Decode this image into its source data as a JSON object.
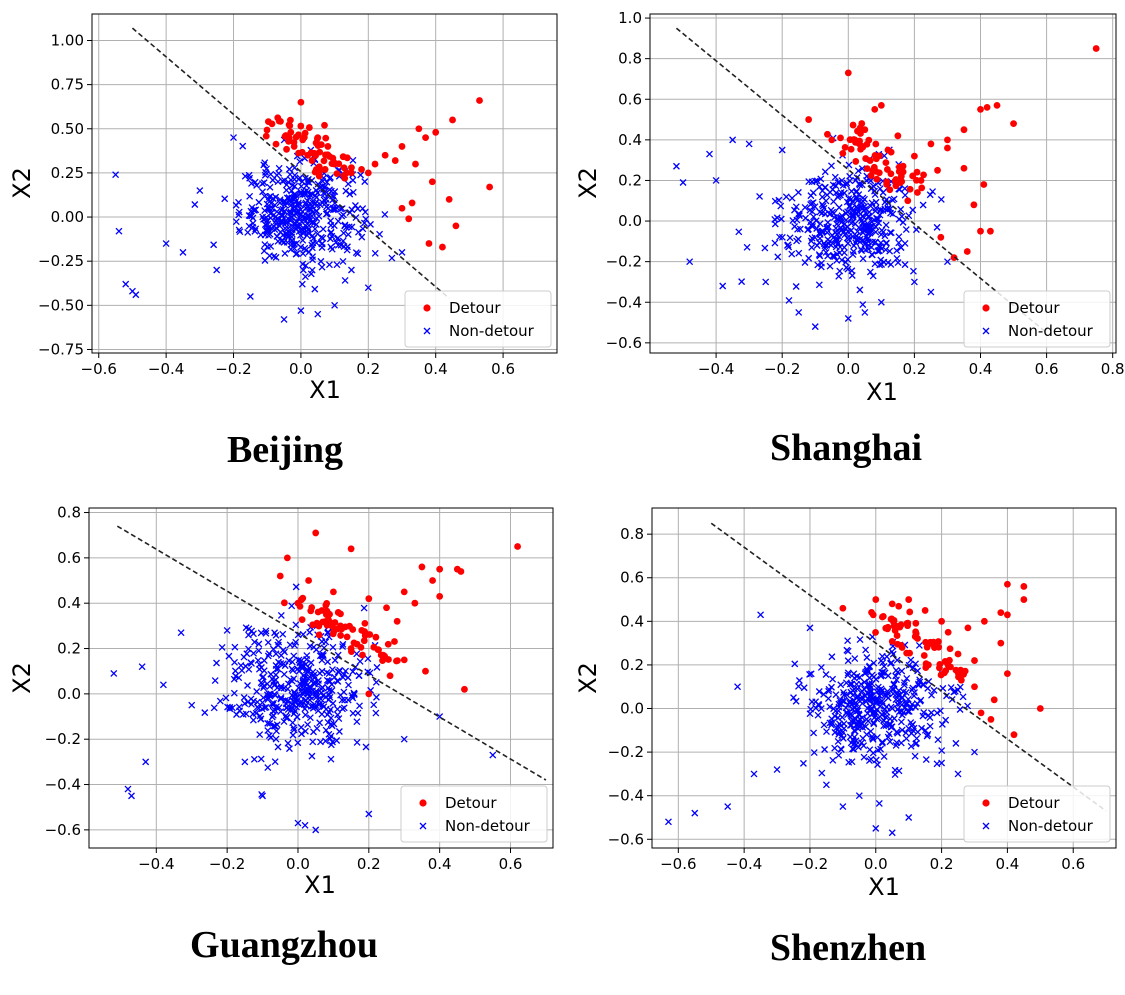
{
  "colors": {
    "detour": "#ff0000",
    "non_detour": "#0000ff",
    "boundary": "#222222",
    "grid": "#b0b0b0",
    "frame": "#000000"
  },
  "chart_data": [
    {
      "type": "scatter",
      "caption": "Beijing",
      "xlabel": "X1",
      "ylabel": "X2",
      "xlim": [
        -0.62,
        0.76
      ],
      "ylim": [
        -0.77,
        1.15
      ],
      "xticks": [
        -0.6,
        -0.4,
        -0.2,
        0.0,
        0.2,
        0.4,
        0.6
      ],
      "yticks": [
        -0.75,
        -0.5,
        -0.25,
        0.0,
        0.25,
        0.5,
        0.75,
        1.0
      ],
      "xtick_labels": [
        "−0.6",
        "−0.4",
        "−0.2",
        "0.0",
        "0.2",
        "0.4",
        "0.6"
      ],
      "ytick_labels": [
        "−0.75",
        "−0.50",
        "−0.25",
        "0.00",
        "0.25",
        "0.50",
        "0.75",
        "1.00"
      ],
      "grid": true,
      "legend_position": "lower-right",
      "series": [
        {
          "name": "Detour",
          "marker": "circle",
          "x": [
            0.0,
            0.05,
            0.1,
            0.15,
            0.2,
            0.25,
            0.3,
            0.35,
            0.4,
            0.45,
            0.53,
            0.56,
            0.02,
            0.08,
            0.13,
            0.22,
            0.28,
            0.33,
            0.38,
            0.42,
            0.46,
            0.3,
            0.34,
            0.37,
            0.39,
            0.44,
            0.32,
            0.18,
            0.07,
            -0.02
          ],
          "y": [
            0.65,
            0.45,
            0.3,
            0.28,
            0.25,
            0.35,
            0.4,
            0.5,
            0.48,
            0.55,
            0.66,
            0.17,
            0.35,
            0.4,
            0.22,
            0.3,
            0.32,
            0.08,
            -0.15,
            -0.17,
            -0.05,
            0.05,
            0.3,
            0.45,
            0.2,
            0.1,
            -0.01,
            0.27,
            0.52,
            0.4
          ]
        },
        {
          "name": "Non-detour",
          "marker": "x",
          "generated": true,
          "count": 420,
          "center": [
            0.0,
            0.02
          ],
          "spread": [
            0.09,
            0.14
          ],
          "extra_x": [
            -0.55,
            -0.54,
            -0.52,
            -0.5,
            -0.49,
            -0.4,
            -0.35,
            -0.3,
            -0.25,
            -0.2,
            -0.15,
            0.1,
            0.15,
            0.2,
            0.3,
            0.05,
            -0.05,
            0.0
          ],
          "extra_y": [
            0.24,
            -0.08,
            -0.38,
            -0.42,
            -0.44,
            -0.15,
            -0.2,
            0.15,
            -0.3,
            0.45,
            -0.45,
            -0.5,
            -0.3,
            -0.4,
            -0.2,
            -0.55,
            -0.58,
            -0.53
          ]
        }
      ],
      "boundary": {
        "from": [
          -0.5,
          1.07
        ],
        "to": [
          0.44,
          -0.46
        ]
      }
    },
    {
      "type": "scatter",
      "caption": "Shanghai",
      "xlabel": "X1",
      "ylabel": "X2",
      "xlim": [
        -0.6,
        0.81
      ],
      "ylim": [
        -0.65,
        1.02
      ],
      "xticks": [
        -0.4,
        -0.2,
        0.0,
        0.2,
        0.4,
        0.6,
        0.8
      ],
      "yticks": [
        -0.6,
        -0.4,
        -0.2,
        0.0,
        0.2,
        0.4,
        0.6,
        0.8,
        1.0
      ],
      "xtick_labels": [
        "−0.4",
        "−0.2",
        "0.0",
        "0.2",
        "0.4",
        "0.6",
        "0.8"
      ],
      "ytick_labels": [
        "−0.6",
        "−0.4",
        "−0.2",
        "0.0",
        "0.2",
        "0.4",
        "0.6",
        "0.8",
        "1.0"
      ],
      "grid": true,
      "legend_position": "lower-right",
      "series": [
        {
          "name": "Detour",
          "marker": "circle",
          "x": [
            0.75,
            0.0,
            0.1,
            0.15,
            0.05,
            0.2,
            0.25,
            0.3,
            0.35,
            0.4,
            0.42,
            0.45,
            0.5,
            0.38,
            0.4,
            0.43,
            0.36,
            0.32,
            0.28,
            0.12,
            0.08,
            -0.05,
            -0.12,
            0.18,
            0.22,
            0.27,
            0.35,
            0.41,
            0.3,
            0.02
          ],
          "y": [
            0.85,
            0.73,
            0.57,
            0.42,
            0.45,
            0.32,
            0.38,
            0.4,
            0.45,
            0.55,
            0.56,
            0.57,
            0.48,
            0.08,
            -0.05,
            -0.05,
            -0.15,
            -0.18,
            -0.08,
            0.35,
            0.55,
            0.4,
            0.5,
            0.1,
            0.2,
            0.25,
            0.26,
            0.18,
            0.36,
            0.4
          ]
        },
        {
          "name": "Non-detour",
          "marker": "x",
          "generated": true,
          "count": 420,
          "center": [
            0.0,
            0.0
          ],
          "spread": [
            0.1,
            0.13
          ],
          "extra_x": [
            -0.52,
            -0.5,
            -0.48,
            -0.42,
            -0.4,
            -0.38,
            -0.35,
            -0.3,
            -0.25,
            -0.2,
            -0.15,
            0.2,
            0.25,
            0.3,
            0.1,
            0.05,
            0.0,
            -0.1
          ],
          "extra_y": [
            0.27,
            0.19,
            -0.2,
            0.33,
            0.2,
            -0.32,
            0.4,
            0.38,
            -0.3,
            0.35,
            -0.45,
            -0.3,
            -0.35,
            -0.2,
            -0.4,
            -0.45,
            -0.48,
            -0.52
          ]
        }
      ],
      "boundary": {
        "from": [
          -0.52,
          0.95
        ],
        "to": [
          0.6,
          -0.55
        ]
      }
    },
    {
      "type": "scatter",
      "caption": "Guangzhou",
      "xlabel": "X1",
      "ylabel": "X2",
      "xlim": [
        -0.59,
        0.72
      ],
      "ylim": [
        -0.68,
        0.82
      ],
      "xticks": [
        -0.4,
        -0.2,
        0.0,
        0.2,
        0.4,
        0.6
      ],
      "yticks": [
        -0.6,
        -0.4,
        -0.2,
        0.0,
        0.2,
        0.4,
        0.6,
        0.8
      ],
      "xtick_labels": [
        "−0.4",
        "−0.2",
        "0.0",
        "0.2",
        "0.4",
        "0.6"
      ],
      "ytick_labels": [
        "−0.6",
        "−0.4",
        "−0.2",
        "0.0",
        "0.2",
        "0.4",
        "0.6",
        "0.8"
      ],
      "grid": true,
      "legend_position": "lower-right",
      "series": [
        {
          "name": "Detour",
          "marker": "circle",
          "x": [
            0.62,
            0.05,
            0.15,
            -0.03,
            0.1,
            0.2,
            0.25,
            0.3,
            0.35,
            0.38,
            0.4,
            0.45,
            0.46,
            0.47,
            0.36,
            0.3,
            0.22,
            0.18,
            0.12,
            0.08,
            0.03,
            -0.05,
            0.28,
            0.33,
            0.4,
            0.26,
            0.15,
            0.06,
            0.0,
            0.2
          ],
          "y": [
            0.65,
            0.71,
            0.64,
            0.6,
            0.45,
            0.42,
            0.38,
            0.45,
            0.56,
            0.5,
            0.55,
            0.55,
            0.54,
            0.02,
            0.1,
            0.15,
            0.25,
            0.28,
            0.3,
            0.35,
            0.5,
            0.52,
            0.32,
            0.4,
            0.43,
            0.08,
            0.2,
            0.26,
            0.4,
            0.0
          ]
        },
        {
          "name": "Non-detour",
          "marker": "x",
          "generated": true,
          "count": 420,
          "center": [
            0.0,
            0.02
          ],
          "spread": [
            0.1,
            0.14
          ],
          "extra_x": [
            -0.52,
            -0.48,
            -0.47,
            -0.44,
            -0.43,
            -0.38,
            -0.33,
            -0.3,
            -0.2,
            -0.15,
            0.05,
            0.0,
            0.02,
            0.2,
            0.55,
            0.4,
            -0.1,
            0.3
          ],
          "extra_y": [
            0.09,
            -0.42,
            -0.45,
            0.12,
            -0.3,
            0.04,
            0.27,
            -0.05,
            0.28,
            -0.3,
            -0.6,
            -0.57,
            -0.58,
            -0.53,
            -0.27,
            -0.1,
            -0.45,
            -0.2
          ]
        }
      ],
      "boundary": {
        "from": [
          -0.51,
          0.74
        ],
        "to": [
          0.7,
          -0.38
        ]
      }
    },
    {
      "type": "scatter",
      "caption": "Shenzhen",
      "xlabel": "X1",
      "ylabel": "X2",
      "xlim": [
        -0.68,
        0.73
      ],
      "ylim": [
        -0.64,
        0.92
      ],
      "xticks": [
        -0.6,
        -0.4,
        -0.2,
        0.0,
        0.2,
        0.4,
        0.6
      ],
      "yticks": [
        -0.6,
        -0.4,
        -0.2,
        0.0,
        0.2,
        0.4,
        0.6,
        0.8
      ],
      "xtick_labels": [
        "−0.6",
        "−0.4",
        "−0.2",
        "0.0",
        "0.2",
        "0.4",
        "0.6"
      ],
      "ytick_labels": [
        "−0.6",
        "−0.4",
        "−0.2",
        "0.0",
        "0.2",
        "0.4",
        "0.6",
        "0.8"
      ],
      "grid": true,
      "legend_position": "lower-right",
      "series": [
        {
          "name": "Detour",
          "marker": "circle",
          "x": [
            0.4,
            0.45,
            0.5,
            0.42,
            0.35,
            0.3,
            0.25,
            0.2,
            0.15,
            0.1,
            0.05,
            0.0,
            -0.1,
            0.4,
            0.38,
            0.33,
            0.28,
            0.22,
            0.18,
            0.12,
            0.08,
            0.02,
            0.32,
            0.36,
            0.4,
            0.26,
            0.3,
            0.45,
            0.38,
            0.16
          ],
          "y": [
            0.57,
            0.56,
            0.0,
            -0.12,
            -0.05,
            0.1,
            0.25,
            0.4,
            0.45,
            0.5,
            0.48,
            0.5,
            0.46,
            0.16,
            0.44,
            0.4,
            0.37,
            0.35,
            0.3,
            0.33,
            0.28,
            0.42,
            -0.02,
            0.04,
            0.43,
            0.13,
            0.22,
            0.5,
            0.3,
            0.2
          ]
        },
        {
          "name": "Non-detour",
          "marker": "x",
          "generated": true,
          "count": 420,
          "center": [
            0.0,
            0.0
          ],
          "spread": [
            0.1,
            0.13
          ],
          "extra_x": [
            -0.63,
            -0.55,
            -0.45,
            -0.42,
            -0.37,
            -0.35,
            -0.3,
            -0.25,
            -0.2,
            -0.15,
            -0.1,
            0.0,
            0.05,
            0.1,
            0.3,
            0.25,
            0.2,
            -0.05
          ],
          "extra_y": [
            -0.52,
            -0.48,
            -0.45,
            0.1,
            -0.3,
            0.43,
            -0.28,
            0.05,
            0.37,
            -0.35,
            -0.45,
            -0.55,
            -0.57,
            -0.5,
            -0.2,
            -0.3,
            -0.25,
            -0.4
          ]
        }
      ],
      "boundary": {
        "from": [
          -0.5,
          0.85
        ],
        "to": [
          0.7,
          -0.47
        ]
      }
    }
  ]
}
